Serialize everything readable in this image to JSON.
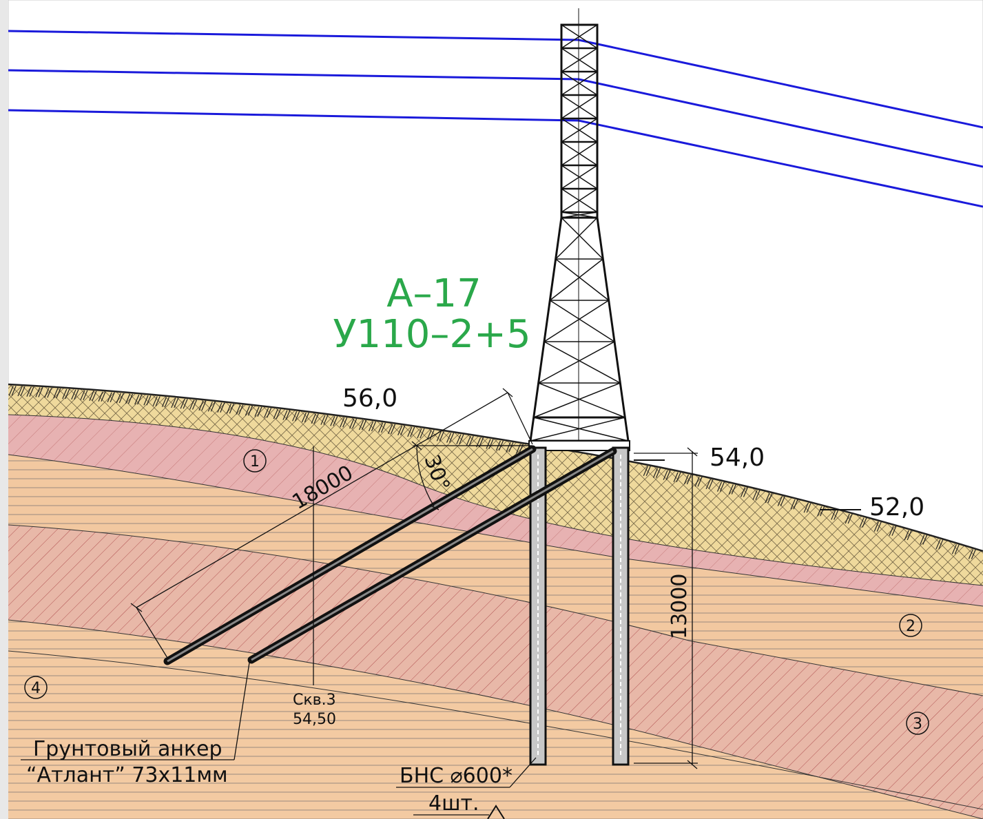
{
  "colors": {
    "conductor": "#1a1adb",
    "tower_label": "#2aa84a",
    "topsoil": "#efd99c",
    "layer_pink": "#e7b2b2",
    "layer_orange": "#f2c8a0",
    "layer_hatched": "#e8b8a8",
    "layer_bottom": "#f3caa2",
    "steel": "#111111"
  },
  "tower": {
    "name": "А–17",
    "type": "У110–2+5"
  },
  "elevations": {
    "left": "56,0",
    "right_top": "54,0",
    "right_bottom": "52,0"
  },
  "dimensions": {
    "anchor_length": "18000",
    "anchor_angle": "30°",
    "pile_length": "13000"
  },
  "soil_layers": [
    "1",
    "2",
    "3",
    "4"
  ],
  "borehole": {
    "name": "Скв.3",
    "elevation": "54,50"
  },
  "anchor_note": {
    "line1": "Грунтовый анкер",
    "line2": "“Атлант” 73х11мм"
  },
  "pile_note": {
    "line1": "БНС ⌀600*",
    "line2": "4шт."
  }
}
